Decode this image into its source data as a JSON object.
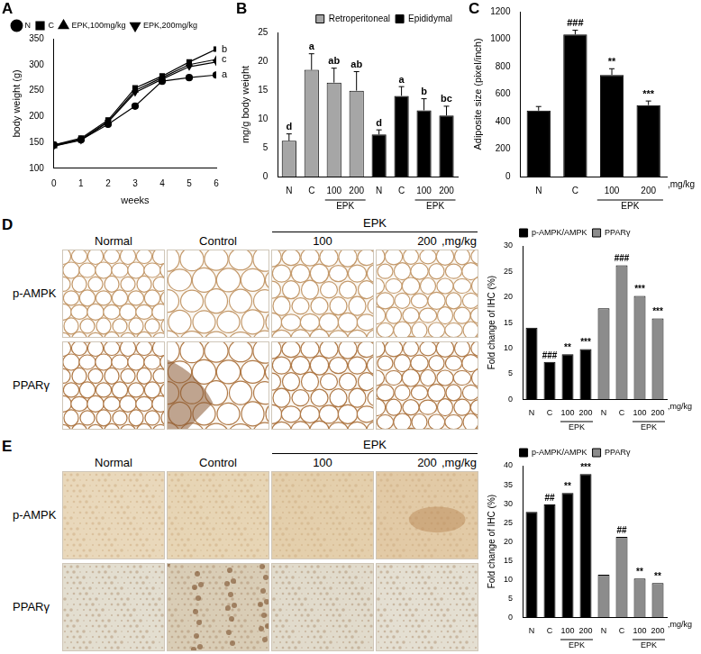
{
  "panel_labels": [
    "A",
    "B",
    "C",
    "D",
    "E"
  ],
  "chart_data": [
    {
      "type": "line",
      "x": [
        0,
        1,
        2,
        3,
        4,
        5,
        6
      ],
      "xlim": [
        0,
        6
      ],
      "xticks": [
        0,
        1,
        2,
        3,
        4,
        5,
        6
      ],
      "ylim": [
        100,
        350
      ],
      "yticks": [
        100,
        150,
        200,
        250,
        300,
        350
      ],
      "x_label": "weeks",
      "y_label": "body weight (g)",
      "legend": "upper left",
      "grid": false,
      "series": [
        {
          "name": "N",
          "color": "#000000",
          "marker": "circle",
          "values": [
            145,
            155,
            185,
            220,
            268,
            275,
            280
          ],
          "end_label": "a"
        },
        {
          "name": "C",
          "color": "#000000",
          "marker": "square",
          "values": [
            145,
            158,
            193,
            255,
            278,
            305,
            330
          ],
          "end_label": "b"
        },
        {
          "name": "EPK,100mg/kg",
          "color": "#000000",
          "marker": "triangle",
          "values": [
            143,
            156,
            190,
            250,
            275,
            300,
            310
          ],
          "end_label": "c"
        },
        {
          "name": "EPK,200mg/kg",
          "color": "#000000",
          "marker": "triangle-down",
          "values": [
            143,
            154,
            189,
            246,
            272,
            296,
            305
          ]
        }
      ]
    },
    {
      "type": "bar",
      "categories": [
        "N",
        "C",
        "100",
        "200",
        "N",
        "C",
        "100",
        "200"
      ],
      "groups": [
        {
          "label": "EPK",
          "categories": [
            2,
            3
          ]
        },
        {
          "label": "EPK",
          "categories": [
            6,
            7
          ]
        }
      ],
      "ylim": [
        0,
        25
      ],
      "yticks": [
        0,
        5,
        10,
        15,
        20,
        25
      ],
      "y_label": "mg/g body weight",
      "legend": "upper right",
      "grid": false,
      "series": [
        {
          "name": "Retroperitoneal",
          "color": "#a6a6a6",
          "values": [
            6.2,
            18.5,
            16.3,
            14.9,
            null,
            null,
            null,
            null
          ],
          "errors": [
            1.2,
            2.8,
            2.5,
            3.3,
            null,
            null,
            null,
            null
          ],
          "significance": [
            "d",
            "a",
            "ab",
            "ab",
            null,
            null,
            null,
            null
          ]
        },
        {
          "name": "Epididymal",
          "color": "#000000",
          "values": [
            null,
            null,
            null,
            null,
            7.3,
            14.0,
            11.5,
            10.6
          ],
          "errors": [
            null,
            null,
            null,
            null,
            0.8,
            1.6,
            2.0,
            1.6
          ],
          "significance": [
            null,
            null,
            null,
            null,
            "d",
            "a",
            "b",
            "bc"
          ]
        }
      ]
    },
    {
      "type": "bar",
      "categories": [
        "N",
        "C",
        "100",
        "200"
      ],
      "unit_label": ",mg/kg",
      "groups": [
        {
          "label": "EPK",
          "categories": [
            2,
            3
          ]
        }
      ],
      "ylim": [
        0,
        1200
      ],
      "yticks": [
        0,
        200,
        400,
        600,
        800,
        1000,
        1200
      ],
      "y_label": "Adiposite size (pixel/inch)",
      "grid": false,
      "series": [
        {
          "name": "Adiposite size",
          "color": "#000000",
          "values": [
            480,
            1035,
            740,
            520
          ],
          "errors": [
            30,
            30,
            45,
            30
          ],
          "significance": [
            null,
            "###",
            "**",
            "***"
          ]
        }
      ]
    },
    {
      "type": "bar",
      "categories": [
        "N",
        "C",
        "100",
        "200",
        "N",
        "C",
        "100",
        "200"
      ],
      "unit_label": ",mg/kg",
      "groups": [
        {
          "label": "EPK",
          "categories": [
            2,
            3
          ]
        },
        {
          "label": "EPK",
          "categories": [
            6,
            7
          ]
        }
      ],
      "ylim": [
        0,
        30
      ],
      "yticks": [
        0,
        5,
        10,
        15,
        20,
        25,
        30
      ],
      "y_label": "Fold change of IHC (%)",
      "legend": "top",
      "grid": false,
      "series": [
        {
          "name": "p-AMPK/AMPK",
          "color": "#000000",
          "values": [
            14.0,
            7.3,
            8.8,
            9.8,
            null,
            null,
            null,
            null
          ],
          "significance": [
            null,
            "###",
            "**",
            "***",
            null,
            null,
            null,
            null
          ]
        },
        {
          "name": "PPARγ",
          "color": "#8c8c8c",
          "values": [
            null,
            null,
            null,
            null,
            17.8,
            26.2,
            20.2,
            15.8
          ],
          "significance": [
            null,
            null,
            null,
            null,
            null,
            "###",
            "***",
            "***"
          ]
        }
      ]
    },
    {
      "type": "bar",
      "categories": [
        "N",
        "C",
        "100",
        "200",
        "N",
        "C",
        "100",
        "200"
      ],
      "unit_label": ",mg/kg",
      "groups": [
        {
          "label": "EPK",
          "categories": [
            2,
            3
          ]
        },
        {
          "label": "EPK",
          "categories": [
            6,
            7
          ]
        }
      ],
      "ylim": [
        0,
        40
      ],
      "yticks": [
        0,
        5,
        10,
        15,
        20,
        25,
        30,
        35,
        40
      ],
      "y_label": "Fold change of IHC (%)",
      "legend": "top",
      "grid": false,
      "series": [
        {
          "name": "p-AMPK/AMPK",
          "color": "#000000",
          "values": [
            27.8,
            29.8,
            32.8,
            37.8,
            null,
            null,
            null,
            null
          ],
          "significance": [
            null,
            "##",
            "**",
            "***",
            null,
            null,
            null,
            null
          ]
        },
        {
          "name": "PPARγ",
          "color": "#8c8c8c",
          "values": [
            null,
            null,
            null,
            null,
            11.2,
            21.2,
            10.2,
            9.0
          ],
          "significance": [
            null,
            null,
            null,
            null,
            null,
            "##",
            "**",
            "**"
          ]
        }
      ]
    }
  ],
  "micrographs": [
    {
      "header": "EPK",
      "columns": [
        "Normal",
        "Control",
        "100",
        "200"
      ],
      "unit": ",mg/kg",
      "rows": [
        "p-AMPK",
        "PPARγ"
      ]
    },
    {
      "header": "EPK",
      "columns": [
        "Normal",
        "Control",
        "100",
        "200"
      ],
      "unit": ",mg/kg",
      "rows": [
        "p-AMPK",
        "PPARγ"
      ]
    }
  ]
}
